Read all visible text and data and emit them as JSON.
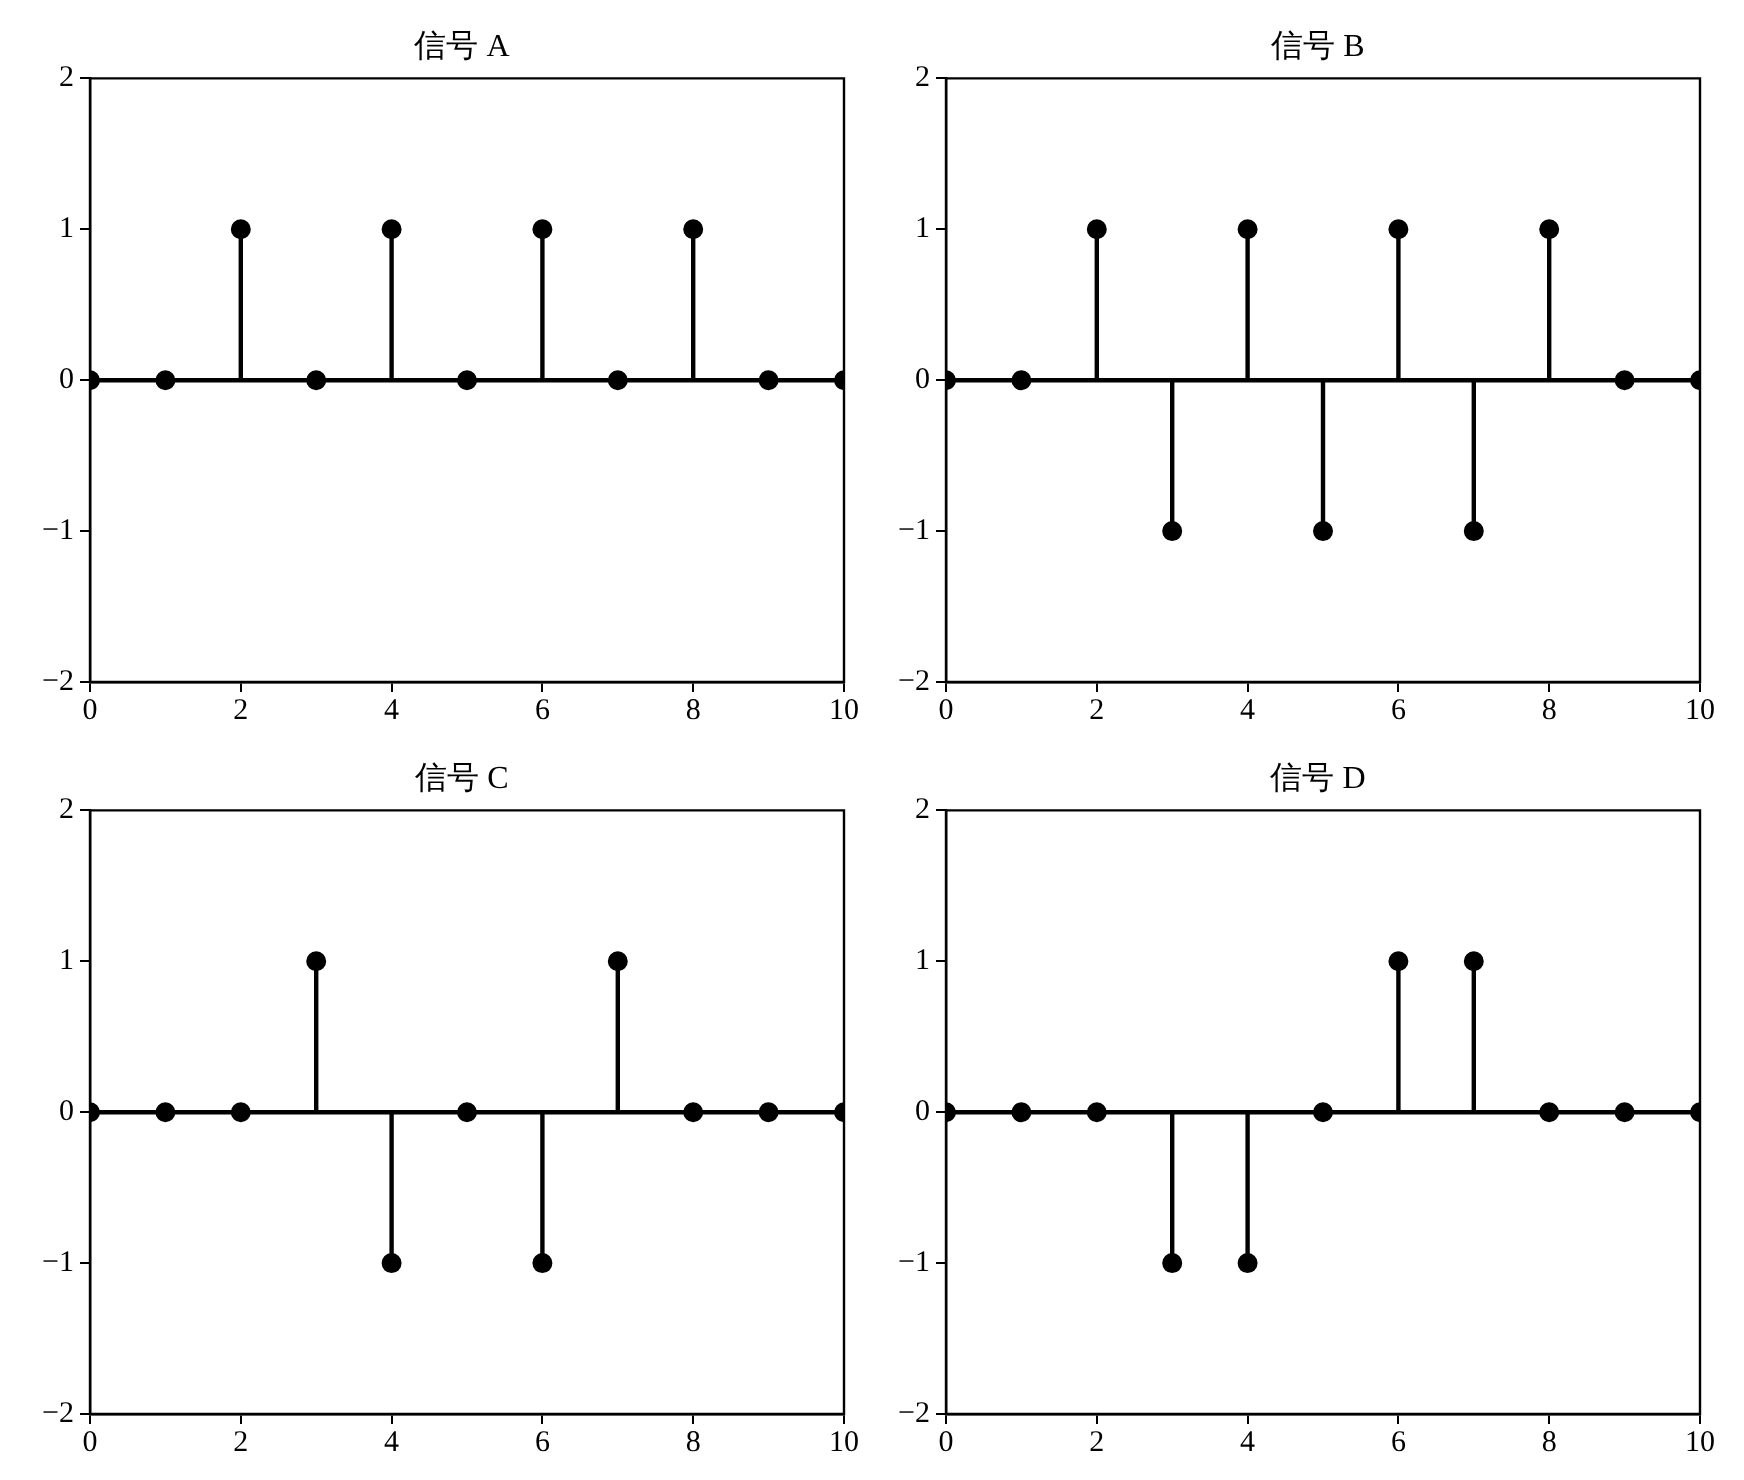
{
  "chart_data": [
    {
      "type": "lollipop",
      "title": "信号 A",
      "x": [
        0,
        1,
        2,
        3,
        4,
        5,
        6,
        7,
        8,
        9,
        10
      ],
      "values": [
        0,
        0,
        1,
        0,
        1,
        0,
        1,
        0,
        1,
        0,
        0
      ],
      "color": "#000000",
      "marker": "circle",
      "xlim": [
        0,
        10
      ],
      "xticks": [
        0,
        2,
        4,
        6,
        8,
        10
      ],
      "ylim": [
        -2,
        2
      ],
      "yticks": [
        -2,
        -1,
        0,
        1,
        2
      ]
    },
    {
      "type": "lollipop",
      "title": "信号 B",
      "x": [
        0,
        1,
        2,
        3,
        4,
        5,
        6,
        7,
        8,
        9,
        10
      ],
      "values": [
        0,
        0,
        1,
        -1,
        1,
        -1,
        1,
        -1,
        1,
        0,
        0
      ],
      "color": "#000000",
      "marker": "circle",
      "xlim": [
        0,
        10
      ],
      "xticks": [
        0,
        2,
        4,
        6,
        8,
        10
      ],
      "ylim": [
        -2,
        2
      ],
      "yticks": [
        -2,
        -1,
        0,
        1,
        2
      ]
    },
    {
      "type": "lollipop",
      "title": "信号 C",
      "x": [
        0,
        1,
        2,
        3,
        4,
        5,
        6,
        7,
        8,
        9,
        10
      ],
      "values": [
        0,
        0,
        0,
        1,
        -1,
        0,
        -1,
        1,
        0,
        0,
        0
      ],
      "color": "#000000",
      "marker": "circle",
      "xlim": [
        0,
        10
      ],
      "xticks": [
        0,
        2,
        4,
        6,
        8,
        10
      ],
      "ylim": [
        -2,
        2
      ],
      "yticks": [
        -2,
        -1,
        0,
        1,
        2
      ]
    },
    {
      "type": "lollipop",
      "title": "信号 D",
      "x": [
        0,
        1,
        2,
        3,
        4,
        5,
        6,
        7,
        8,
        9,
        10
      ],
      "values": [
        0,
        0,
        0,
        -1,
        -1,
        0,
        1,
        1,
        0,
        0,
        0
      ],
      "color": "#000000",
      "marker": "circle",
      "xlim": [
        0,
        10
      ],
      "xticks": [
        0,
        2,
        4,
        6,
        8,
        10
      ],
      "ylim": [
        -2,
        2
      ],
      "yticks": [
        -2,
        -1,
        0,
        1,
        2
      ]
    }
  ]
}
